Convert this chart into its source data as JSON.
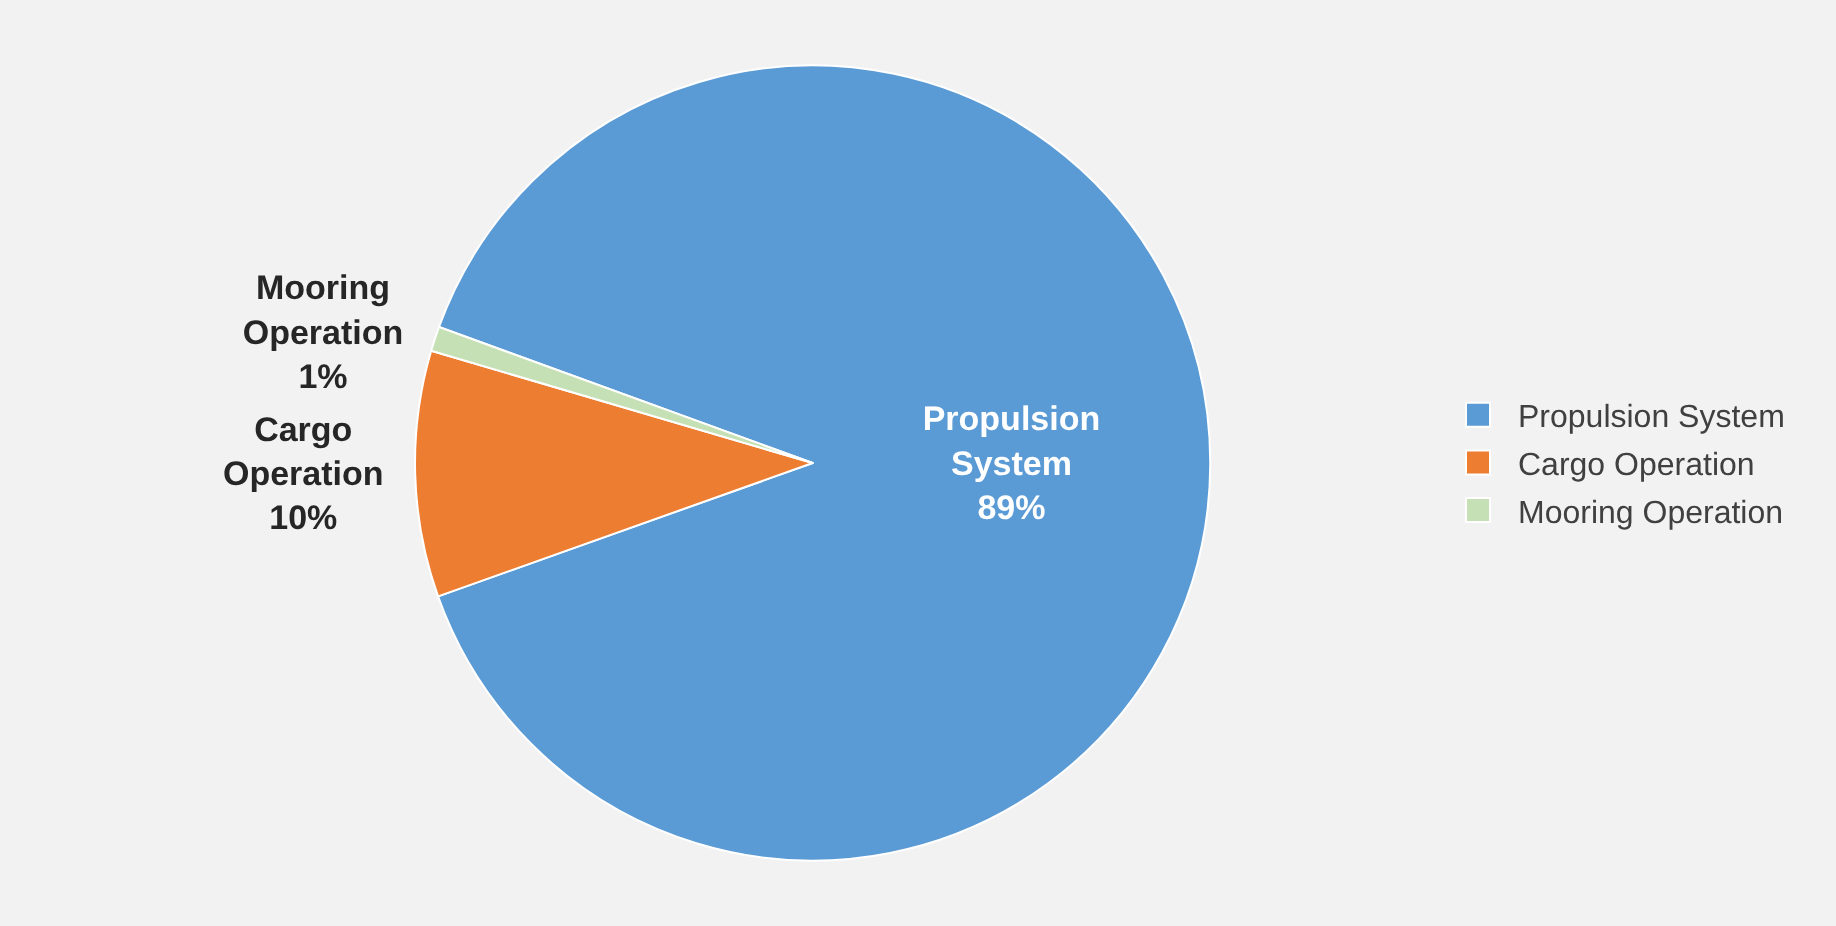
{
  "chart_data": {
    "type": "pie",
    "categories": [
      "Propulsion System",
      "Cargo Operation",
      "Mooring Operation"
    ],
    "values": [
      89,
      10,
      1
    ],
    "colors": [
      "#5b9bd5",
      "#ed7d31",
      "#c5e0b4"
    ],
    "value_labels": [
      "89%",
      "10%",
      "1%"
    ],
    "legend": "right"
  }
}
